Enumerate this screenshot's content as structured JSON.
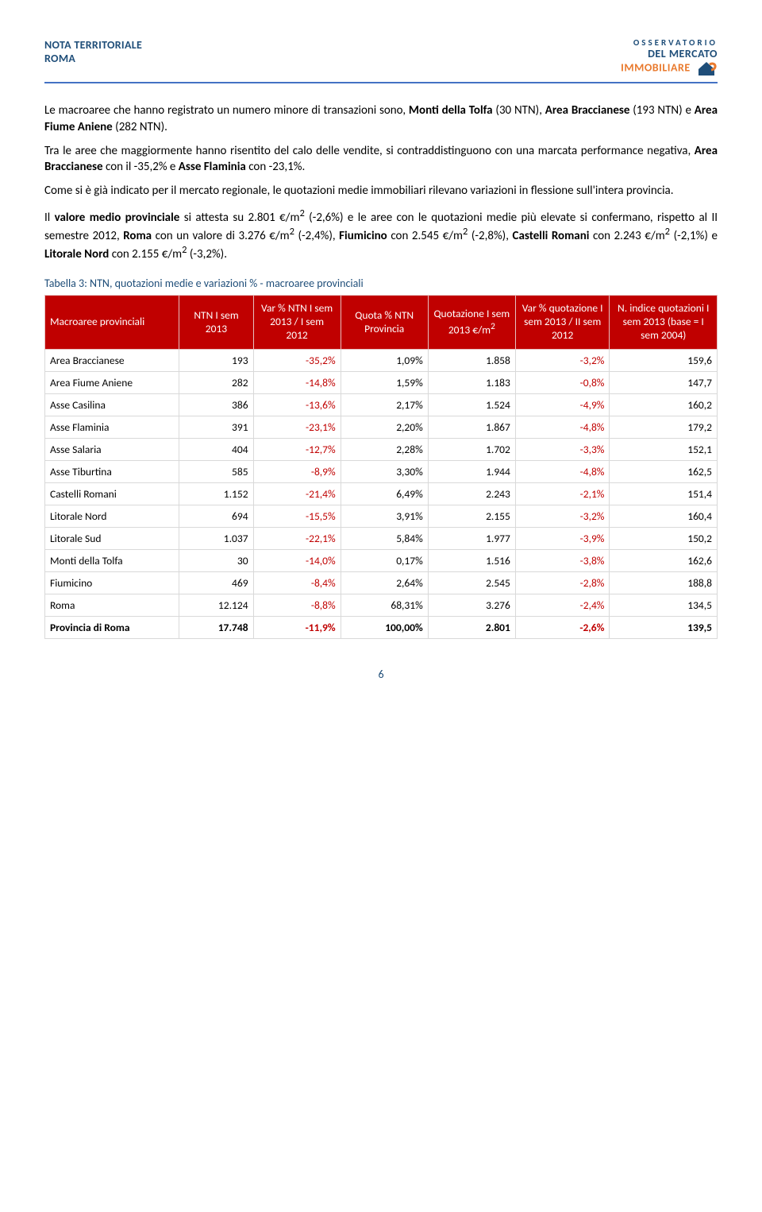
{
  "header": {
    "line1": "NOTA TERRITORIALE",
    "line2": "ROMA",
    "logo_line1": "OSSERVATORIO",
    "logo_line2a": "DEL MERCATO",
    "logo_line2b": "IMMOBILIARE"
  },
  "paragraphs": {
    "p1_a": "Le macroaree che hanno registrato un numero minore di transazioni sono, ",
    "p1_b": "Monti della Tolfa",
    "p1_c": " (30 NTN), ",
    "p1_d": "Area Braccianese",
    "p1_e": " (193 NTN) e ",
    "p1_f": "Area Fiume Aniene",
    "p1_g": " (282 NTN).",
    "p2_a": "Tra le aree che maggiormente hanno risentito del calo delle vendite, si contraddistinguono con una marcata performance negativa, ",
    "p2_b": "Area Braccianese",
    "p2_c": " con il -35,2% e ",
    "p2_d": "Asse Flaminia",
    "p2_e": " con -23,1%.",
    "p3": "Come si è già indicato per il mercato regionale, le quotazioni medie immobiliari rilevano variazioni in flessione sull'intera provincia.",
    "p4_a": "Il ",
    "p4_b": "valore medio provinciale",
    "p4_c": " si attesta su 2.801 €/m",
    "p4_sup1": "2",
    "p4_d": " (-2,6%) e le aree con le quotazioni medie più elevate si confermano, rispetto al II semestre 2012, ",
    "p4_e": "Roma",
    "p4_f": " con un valore di 3.276 €/m",
    "p4_sup2": "2",
    "p4_g": "(-2,4%), ",
    "p4_h": "Fiumicino",
    "p4_i": " con 2.545 €/m",
    "p4_sup3": "2",
    "p4_j": " (-2,8%), ",
    "p4_k": "Castelli Romani",
    "p4_l": " con 2.243 €/m",
    "p4_sup4": "2",
    "p4_m": " (-2,1%) e ",
    "p4_n": "Litorale Nord",
    "p4_o": " con 2.155 €/m",
    "p4_sup5": "2",
    "p4_p": " (-3,2%)."
  },
  "table": {
    "caption": "Tabella 3: NTN, quotazioni medie e variazioni % - macroaree provinciali",
    "columns": {
      "c0": "Macroaree provinciali",
      "c1": "NTN I sem 2013",
      "c2": "Var % NTN I sem 2013 / I sem 2012",
      "c3": "Quota % NTN Provincia",
      "c4_a": "Quotazione I sem 2013 €/m",
      "c4_sup": "2",
      "c5": "Var % quotazione I sem 2013 / II sem 2012",
      "c6": "N. indice quotazioni I sem 2013 (base = I sem 2004)"
    },
    "rows": [
      {
        "name": "Area Braccianese",
        "ntn": "193",
        "var_ntn": "-35,2%",
        "quota": "1,09%",
        "quot": "1.858",
        "var_q": "-3,2%",
        "idx": "159,6"
      },
      {
        "name": "Area Fiume Aniene",
        "ntn": "282",
        "var_ntn": "-14,8%",
        "quota": "1,59%",
        "quot": "1.183",
        "var_q": "-0,8%",
        "idx": "147,7"
      },
      {
        "name": "Asse Casilina",
        "ntn": "386",
        "var_ntn": "-13,6%",
        "quota": "2,17%",
        "quot": "1.524",
        "var_q": "-4,9%",
        "idx": "160,2"
      },
      {
        "name": "Asse Flaminia",
        "ntn": "391",
        "var_ntn": "-23,1%",
        "quota": "2,20%",
        "quot": "1.867",
        "var_q": "-4,8%",
        "idx": "179,2"
      },
      {
        "name": "Asse Salaria",
        "ntn": "404",
        "var_ntn": "-12,7%",
        "quota": "2,28%",
        "quot": "1.702",
        "var_q": "-3,3%",
        "idx": "152,1"
      },
      {
        "name": "Asse Tiburtina",
        "ntn": "585",
        "var_ntn": "-8,9%",
        "quota": "3,30%",
        "quot": "1.944",
        "var_q": "-4,8%",
        "idx": "162,5"
      },
      {
        "name": "Castelli Romani",
        "ntn": "1.152",
        "var_ntn": "-21,4%",
        "quota": "6,49%",
        "quot": "2.243",
        "var_q": "-2,1%",
        "idx": "151,4"
      },
      {
        "name": "Litorale Nord",
        "ntn": "694",
        "var_ntn": "-15,5%",
        "quota": "3,91%",
        "quot": "2.155",
        "var_q": "-3,2%",
        "idx": "160,4"
      },
      {
        "name": "Litorale Sud",
        "ntn": "1.037",
        "var_ntn": "-22,1%",
        "quota": "5,84%",
        "quot": "1.977",
        "var_q": "-3,9%",
        "idx": "150,2"
      },
      {
        "name": "Monti della Tolfa",
        "ntn": "30",
        "var_ntn": "-14,0%",
        "quota": "0,17%",
        "quot": "1.516",
        "var_q": "-3,8%",
        "idx": "162,6"
      },
      {
        "name": "Fiumicino",
        "ntn": "469",
        "var_ntn": "-8,4%",
        "quota": "2,64%",
        "quot": "2.545",
        "var_q": "-2,8%",
        "idx": "188,8"
      },
      {
        "name": "Roma",
        "ntn": "12.124",
        "var_ntn": "-8,8%",
        "quota": "68,31%",
        "quot": "3.276",
        "var_q": "-2,4%",
        "idx": "134,5"
      }
    ],
    "total": {
      "name": "Provincia di Roma",
      "ntn": "17.748",
      "var_ntn": "-11,9%",
      "quota": "100,00%",
      "quot": "2.801",
      "var_q": "-2,6%",
      "idx": "139,5"
    }
  },
  "pagenum": "6",
  "style": {
    "header_color": "#1f4e79",
    "rule_color": "#4472c4",
    "table_header_bg": "#c00000",
    "table_header_fg": "#ffffff",
    "cell_border": "#d9d9d9",
    "negative_color": "#c00000",
    "logo_orange": "#e97a2e",
    "body_font_size": 15,
    "table_font_size": 13.5
  }
}
